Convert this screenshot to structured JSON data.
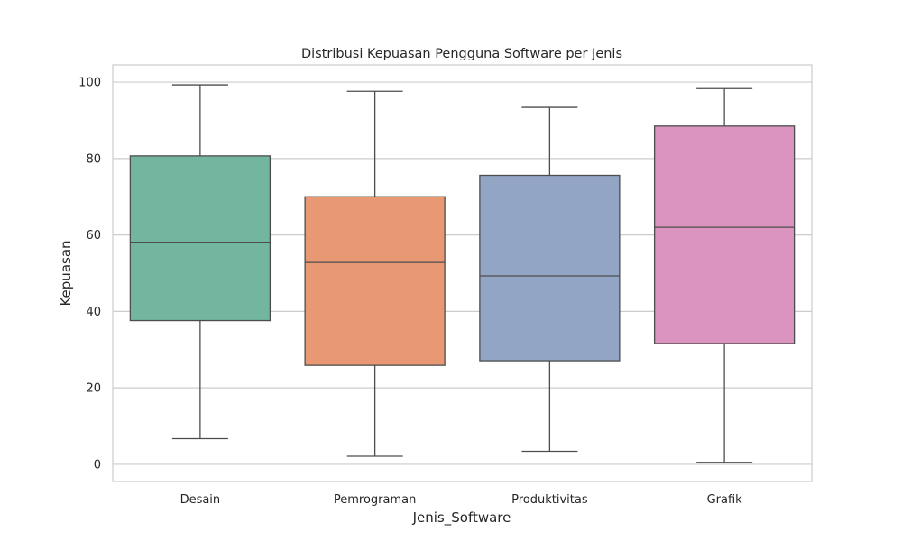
{
  "chart_data": {
    "type": "boxplot",
    "title": "Distribusi Kepuasan Pengguna Software per Jenis",
    "xlabel": "Jenis_Software",
    "ylabel": "Kepuasan",
    "ylim": [
      -4.5,
      104.5
    ],
    "yticks": [
      0,
      20,
      40,
      60,
      80,
      100
    ],
    "grid": "horizontal",
    "categories": [
      "Desain",
      "Pemrograman",
      "Produktivitas",
      "Grafik"
    ],
    "colors": [
      "#73b6a0",
      "#e99874",
      "#93a5c4",
      "#db93bf"
    ],
    "line_color": "#4d4d4d",
    "boxes": [
      {
        "category": "Desain",
        "whisker_low": 6.7,
        "q1": 37.6,
        "median": 58.1,
        "q3": 80.7,
        "whisker_high": 99.3
      },
      {
        "category": "Pemrograman",
        "whisker_low": 2.1,
        "q1": 25.9,
        "median": 52.8,
        "q3": 70.0,
        "whisker_high": 97.6
      },
      {
        "category": "Produktivitas",
        "whisker_low": 3.4,
        "q1": 27.1,
        "median": 49.3,
        "q3": 75.6,
        "whisker_high": 93.4
      },
      {
        "category": "Grafik",
        "whisker_low": 0.5,
        "q1": 31.6,
        "median": 62.0,
        "q3": 88.5,
        "whisker_high": 98.3
      }
    ]
  }
}
